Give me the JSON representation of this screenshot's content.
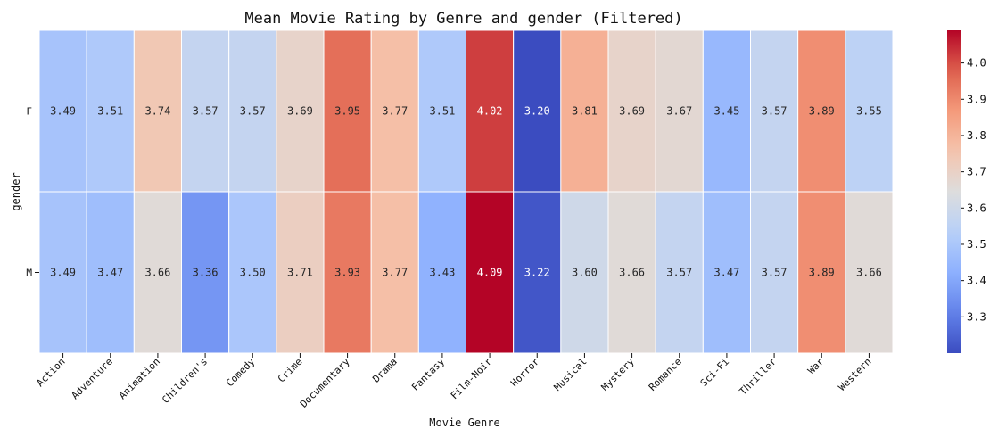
{
  "chart_data": {
    "type": "heatmap",
    "title": "Mean Movie Rating by Genre and gender (Filtered)",
    "xlabel": "Movie Genre",
    "ylabel": "gender",
    "x_categories": [
      "Action",
      "Adventure",
      "Animation",
      "Children's",
      "Comedy",
      "Crime",
      "Documentary",
      "Drama",
      "Fantasy",
      "Film-Noir",
      "Horror",
      "Musical",
      "Mystery",
      "Romance",
      "Sci-Fi",
      "Thriller",
      "War",
      "Western"
    ],
    "y_categories": [
      "F",
      "M"
    ],
    "values": [
      [
        3.49,
        3.51,
        3.74,
        3.57,
        3.57,
        3.69,
        3.95,
        3.77,
        3.51,
        4.02,
        3.2,
        3.81,
        3.69,
        3.67,
        3.45,
        3.57,
        3.89,
        3.55
      ],
      [
        3.49,
        3.47,
        3.66,
        3.36,
        3.5,
        3.71,
        3.93,
        3.77,
        3.43,
        4.09,
        3.22,
        3.6,
        3.66,
        3.57,
        3.47,
        3.57,
        3.89,
        3.66
      ]
    ],
    "value_format": "2 decimals",
    "colormap": "coolwarm",
    "colorbar": {
      "range": [
        3.2,
        4.09
      ],
      "ticks": [
        "3.3",
        "3.4",
        "3.5",
        "3.6",
        "3.7",
        "3.8",
        "3.9",
        "4.0"
      ]
    }
  }
}
